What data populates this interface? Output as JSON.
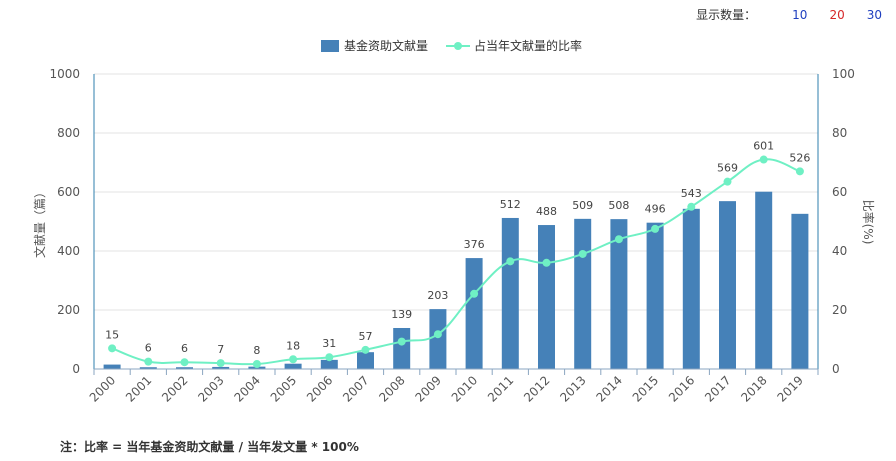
{
  "display_count": {
    "label": "显示数量：",
    "options": [
      {
        "label": "10",
        "color": "#1f3fbf"
      },
      {
        "label": "20",
        "color": "#d62728"
      },
      {
        "label": "30",
        "color": "#1f3fbf"
      }
    ]
  },
  "note": "注：比率 = 当年基金资助文献量 / 当年发文量 * 100%",
  "colors": {
    "bar": "#4581b8",
    "line": "#6ff0c4",
    "axis": "#2f7fae",
    "grid": "#e3e3e3"
  },
  "chart_data": {
    "type": "bar",
    "categories": [
      "2000",
      "2001",
      "2002",
      "2003",
      "2004",
      "2005",
      "2006",
      "2007",
      "2008",
      "2009",
      "2010",
      "2011",
      "2012",
      "2013",
      "2014",
      "2015",
      "2016",
      "2017",
      "2018",
      "2019"
    ],
    "series": [
      {
        "name": "基金资助文献量",
        "type": "bar",
        "axis": "left",
        "values": [
          15,
          6,
          6,
          7,
          8,
          18,
          31,
          57,
          139,
          203,
          376,
          512,
          488,
          509,
          508,
          496,
          543,
          569,
          601,
          526
        ]
      },
      {
        "name": "占当年文献量的比率",
        "type": "line",
        "axis": "right",
        "values": [
          7,
          2.5,
          2.3,
          2,
          1.7,
          3.3,
          4,
          6.5,
          9.3,
          11.8,
          25.5,
          36.5,
          36,
          39,
          44,
          47.5,
          55,
          63.5,
          71,
          67
        ]
      }
    ],
    "ylabel_left": "文献量（篇）",
    "ylabel_right": "比率(%)",
    "ylim_left": [
      0,
      1000
    ],
    "ylim_right": [
      0,
      100
    ],
    "yticks_left": [
      "0",
      "200",
      "400",
      "600",
      "800",
      "1000"
    ],
    "yticks_right": [
      "0",
      "20",
      "40",
      "60",
      "80",
      "100"
    ],
    "grid": true,
    "legend_position": "top-center"
  }
}
